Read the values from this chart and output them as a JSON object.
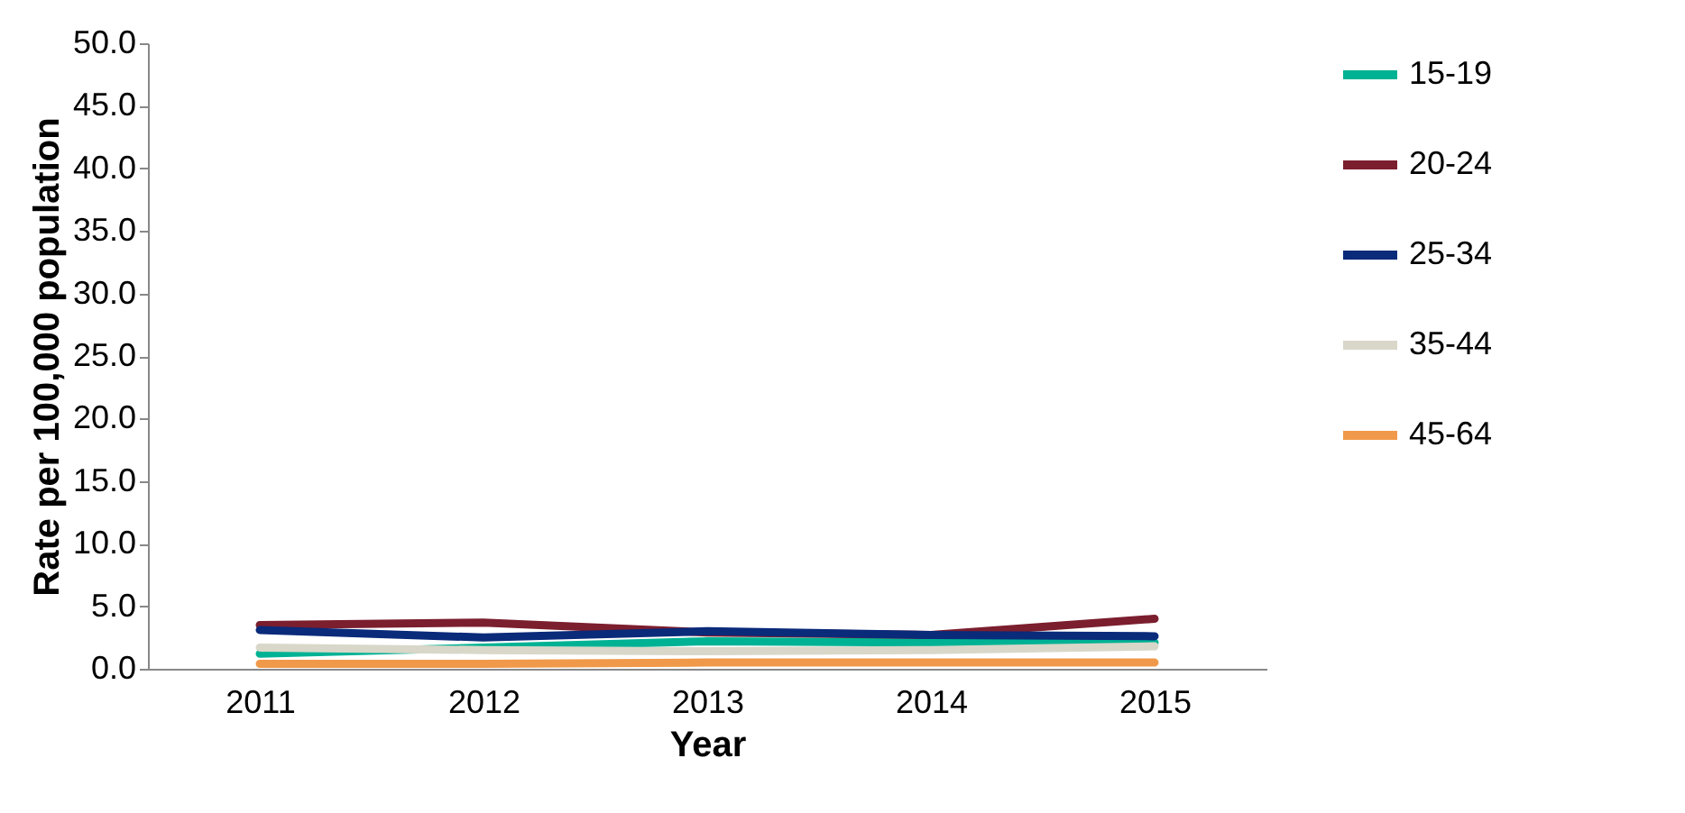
{
  "chart_data": {
    "type": "line",
    "xlabel": "Year",
    "ylabel": "Rate per 100,000 population",
    "categories": [
      "2011",
      "2012",
      "2013",
      "2014",
      "2015"
    ],
    "series": [
      {
        "name": "15-19",
        "color": "#00b294",
        "values": [
          1.2,
          1.7,
          2.2,
          2.1,
          2.1
        ]
      },
      {
        "name": "20-24",
        "color": "#7b1e2e",
        "values": [
          3.5,
          3.7,
          2.9,
          2.7,
          4.0
        ]
      },
      {
        "name": "25-34",
        "color": "#0a2a7a",
        "values": [
          3.1,
          2.5,
          3.0,
          2.7,
          2.6
        ]
      },
      {
        "name": "35-44",
        "color": "#d9d7c9",
        "values": [
          1.7,
          1.5,
          1.4,
          1.5,
          1.8
        ]
      },
      {
        "name": "45-64",
        "color": "#f0994a",
        "values": [
          0.4,
          0.4,
          0.5,
          0.5,
          0.5
        ]
      }
    ],
    "ylim": [
      0,
      50
    ],
    "yticks": [
      {
        "value": 0,
        "label": "0.0"
      },
      {
        "value": 5,
        "label": "5.0"
      },
      {
        "value": 10,
        "label": "10.0"
      },
      {
        "value": 15,
        "label": "15.0"
      },
      {
        "value": 20,
        "label": "20.0"
      },
      {
        "value": 25,
        "label": "25.0"
      },
      {
        "value": 30,
        "label": "30.0"
      },
      {
        "value": 35,
        "label": "35.0"
      },
      {
        "value": 40,
        "label": "40.0"
      },
      {
        "value": 45,
        "label": "45.0"
      },
      {
        "value": 50,
        "label": "50.0"
      }
    ],
    "grid": false,
    "legend": "right",
    "marker": "none",
    "line_style": "solid"
  }
}
